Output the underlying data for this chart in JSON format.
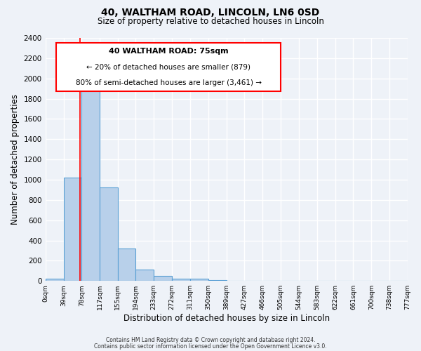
{
  "title": "40, WALTHAM ROAD, LINCOLN, LN6 0SD",
  "subtitle": "Size of property relative to detached houses in Lincoln",
  "xlabel": "Distribution of detached houses by size in Lincoln",
  "ylabel": "Number of detached properties",
  "bar_edges": [
    0,
    39,
    78,
    117,
    155,
    194,
    233,
    272,
    311,
    350,
    389,
    427,
    466,
    505,
    544,
    583,
    622,
    661,
    700,
    738,
    777
  ],
  "bar_heights": [
    25,
    1020,
    1910,
    920,
    320,
    110,
    50,
    25,
    20,
    5,
    0,
    0,
    0,
    0,
    0,
    0,
    0,
    0,
    0,
    0
  ],
  "tick_labels": [
    "0sqm",
    "39sqm",
    "78sqm",
    "117sqm",
    "155sqm",
    "194sqm",
    "233sqm",
    "272sqm",
    "311sqm",
    "350sqm",
    "389sqm",
    "427sqm",
    "466sqm",
    "505sqm",
    "544sqm",
    "583sqm",
    "622sqm",
    "661sqm",
    "700sqm",
    "738sqm",
    "777sqm"
  ],
  "bar_color": "#b8d0ea",
  "bar_edge_color": "#5a9fd4",
  "red_line_x": 75,
  "annotation_line1": "40 WALTHAM ROAD: 75sqm",
  "annotation_line2": "← 20% of detached houses are smaller (879)",
  "annotation_line3": "80% of semi-detached houses are larger (3,461) →",
  "ylim": [
    0,
    2400
  ],
  "yticks": [
    0,
    200,
    400,
    600,
    800,
    1000,
    1200,
    1400,
    1600,
    1800,
    2000,
    2200,
    2400
  ],
  "footer_line1": "Contains HM Land Registry data © Crown copyright and database right 2024.",
  "footer_line2": "Contains public sector information licensed under the Open Government Licence v3.0.",
  "bg_color": "#eef2f8",
  "plot_bg_color": "#eef2f8",
  "grid_color": "#ffffff"
}
